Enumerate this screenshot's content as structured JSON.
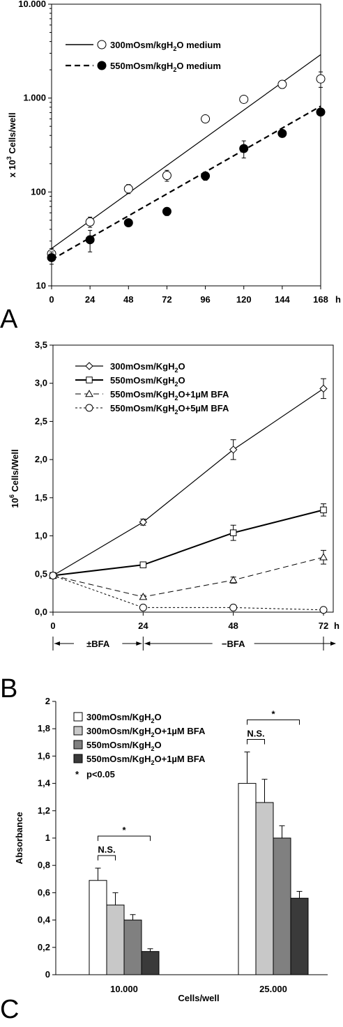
{
  "figure_labels": [
    "A",
    "B",
    "C"
  ],
  "chart_data": [
    {
      "panel": "A",
      "type": "scatter",
      "yscale": "log",
      "ylabel_prefix": "x 10",
      "ylabel_sup": "3",
      "ylabel_suffix": " Cells/well",
      "x_unit": "h",
      "xticks": [
        0,
        24,
        48,
        72,
        96,
        120,
        144,
        168
      ],
      "xlim": [
        0,
        168
      ],
      "yticks": [
        10,
        100,
        1000,
        10000
      ],
      "ytick_labels": [
        "10",
        "100",
        "1.000",
        "10.000"
      ],
      "ylim": [
        10,
        10000
      ],
      "legend_position": "top-left",
      "series": [
        {
          "name": "300mOsm/kgH2O medium",
          "name_main": "300mOsm/kgH",
          "name_sub": "2",
          "name_tail": "O medium",
          "marker": "open-circle",
          "line": "solid",
          "fit": [
            [
              0,
              25
            ],
            [
              168,
              2900
            ]
          ],
          "x": [
            0,
            24,
            48,
            72,
            96,
            120,
            144,
            168
          ],
          "y": [
            22,
            48,
            108,
            150,
            600,
            970,
            1400,
            1600
          ],
          "err": [
            3,
            6,
            12,
            20,
            30,
            60,
            130,
            300
          ]
        },
        {
          "name": "550mOsm/kgH2O medium",
          "name_main": "550mOsm/kgH",
          "name_sub": "2",
          "name_tail": "O medium",
          "marker": "filled-circle",
          "line": "dashed",
          "fit": [
            [
              0,
              19
            ],
            [
              168,
              820
            ]
          ],
          "x": [
            0,
            24,
            48,
            72,
            96,
            120,
            144,
            168
          ],
          "y": [
            20,
            31,
            47,
            62,
            148,
            290,
            420,
            710
          ],
          "err": [
            3,
            8,
            3,
            6,
            15,
            60,
            30,
            50
          ]
        }
      ]
    },
    {
      "panel": "B",
      "type": "line",
      "ylabel_prefix": "10",
      "ylabel_sup": "6",
      "ylabel_suffix": " Cells/Well",
      "x_unit": "h",
      "xticks": [
        0,
        24,
        48,
        72
      ],
      "xlim": [
        0,
        72
      ],
      "yticks": [
        0,
        0.5,
        1.0,
        1.5,
        2.0,
        2.5,
        3.0,
        3.5
      ],
      "ytick_labels": [
        "0,0",
        "0,5",
        "1,0",
        "1,5",
        "2,0",
        "2,5",
        "3,0",
        "3,5"
      ],
      "ylim": [
        0,
        3.5
      ],
      "legend_position": "top-left",
      "annotations": [
        "±BFA",
        "−BFA"
      ],
      "series": [
        {
          "name": "300mOsm/KgH2O",
          "name_main": "300mOsm/KgH",
          "name_sub": "2",
          "name_tail": "O",
          "marker": "diamond",
          "line": "solid",
          "x": [
            0,
            24,
            48,
            72
          ],
          "y": [
            0.48,
            1.18,
            2.13,
            2.93
          ],
          "err": [
            0.03,
            0.04,
            0.13,
            0.13
          ]
        },
        {
          "name": "550mOsm/KgH2O",
          "name_main": "550mOsm/KgH",
          "name_sub": "2",
          "name_tail": "O",
          "marker": "square",
          "line": "solid-thick",
          "x": [
            0,
            24,
            48,
            72
          ],
          "y": [
            0.48,
            0.62,
            1.04,
            1.34
          ],
          "err": [
            0.03,
            0.02,
            0.1,
            0.08
          ]
        },
        {
          "name": "550mOsm/KgH2O+1µM BFA",
          "name_main": "550mOsm/KgH",
          "name_sub": "2",
          "name_tail": "O+1µM BFA",
          "marker": "triangle",
          "line": "dashed",
          "x": [
            0,
            24,
            48,
            72
          ],
          "y": [
            0.48,
            0.2,
            0.42,
            0.72
          ],
          "err": [
            0.03,
            0.02,
            0.04,
            0.09
          ]
        },
        {
          "name": "550mOsm/KgH2O+5µM BFA",
          "name_main": "550mOsm/KgH",
          "name_sub": "2",
          "name_tail": "O+5µM BFA",
          "marker": "open-circle",
          "line": "dotted",
          "x": [
            0,
            24,
            48,
            72
          ],
          "y": [
            0.48,
            0.06,
            0.06,
            0.03
          ],
          "err": [
            0.03,
            0.01,
            0.01,
            0.01
          ]
        }
      ]
    },
    {
      "panel": "C",
      "type": "bar",
      "ylabel": "Absorbance",
      "xlabel": "Cells/well",
      "categories": [
        "10.000",
        "25.000"
      ],
      "yticks": [
        0,
        0.2,
        0.4,
        0.6,
        0.8,
        1.0,
        1.2,
        1.4,
        1.6,
        1.8,
        2.0
      ],
      "ytick_labels": [
        "0",
        "0,2",
        "0,4",
        "0,6",
        "0,8",
        "1",
        "1,2",
        "1,4",
        "1,6",
        "1,8",
        "2"
      ],
      "ylim": [
        0,
        2
      ],
      "legend_position": "top-left",
      "significance_note": "p<0.05",
      "significance_star": "*",
      "ns_label": "N.S.",
      "series": [
        {
          "name": "300mOsm/KgH2O",
          "name_main": "300mOsm/KgH",
          "name_sub": "2",
          "name_tail": "O",
          "color": "#ffffff",
          "values": [
            0.69,
            1.4
          ],
          "err": [
            0.09,
            0.23
          ]
        },
        {
          "name": "300mOsm/KgH2O+1µM BFA",
          "name_main": "300mOsm/KgH",
          "name_sub": "2",
          "name_tail": "O+1µM BFA",
          "color": "#c8c8c8",
          "values": [
            0.51,
            1.26
          ],
          "err": [
            0.09,
            0.17
          ]
        },
        {
          "name": "550mOsm/KgH2O",
          "name_main": "550mOsm/KgH",
          "name_sub": "2",
          "name_tail": "O",
          "color": "#808080",
          "values": [
            0.4,
            1.0
          ],
          "err": [
            0.04,
            0.09
          ]
        },
        {
          "name": "550mOsm/KgH2O+1µM BFA",
          "name_main": "550mOsm/KgH",
          "name_sub": "2",
          "name_tail": "O+1µM BFA",
          "color": "#3a3a3a",
          "values": [
            0.17,
            0.56
          ],
          "err": [
            0.02,
            0.05
          ]
        }
      ]
    }
  ]
}
